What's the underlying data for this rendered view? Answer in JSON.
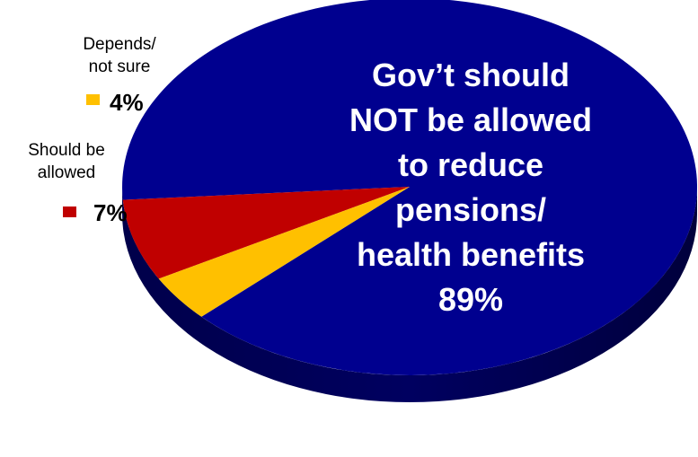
{
  "chart_data": {
    "type": "pie",
    "title": "",
    "slices": [
      {
        "label": "Gov’t should NOT be allowed to reduce pensions/ health benefits",
        "value": 89,
        "value_label": "89%",
        "color": "#00008f"
      },
      {
        "label": "Should be allowed",
        "value": 7,
        "value_label": "7%",
        "color": "#c00000"
      },
      {
        "label": "Depends/ not sure",
        "value": 4,
        "value_label": "4%",
        "color": "#ffc000"
      }
    ]
  },
  "labels": {
    "main_lines": [
      "Gov’t should",
      "NOT be allowed",
      "to reduce",
      "pensions/",
      "health benefits"
    ],
    "main_pct": "89%",
    "allowed_lines": [
      "Should be",
      "allowed"
    ],
    "allowed_pct": "7%",
    "depends_lines": [
      "Depends/",
      "not sure"
    ],
    "depends_pct": "4%"
  }
}
